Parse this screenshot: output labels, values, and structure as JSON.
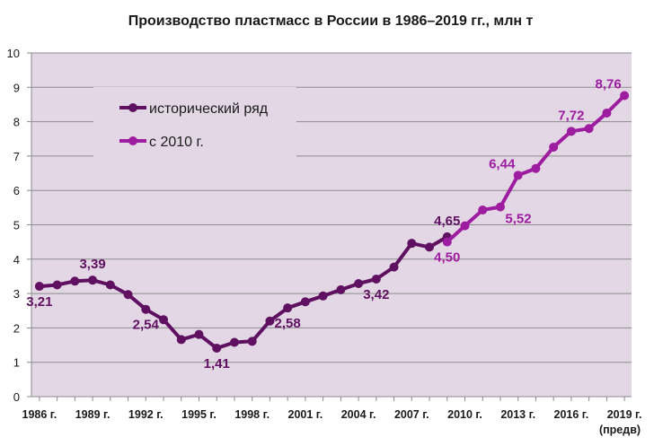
{
  "chart_data": {
    "type": "line",
    "title": "Производство пластмасс в России в 1986–2019 гг., млн т",
    "ylim": [
      0,
      10
    ],
    "yticks": [
      "0",
      "1",
      "2",
      "3",
      "4",
      "5",
      "6",
      "7",
      "8",
      "9",
      "10"
    ],
    "xticks": [
      {
        "year": 1986,
        "label": "1986 г."
      },
      {
        "year": 1989,
        "label": "1989 г."
      },
      {
        "year": 1992,
        "label": "1992 г."
      },
      {
        "year": 1995,
        "label": "1995 г."
      },
      {
        "year": 1998,
        "label": "1998 г."
      },
      {
        "year": 2001,
        "label": "2001 г."
      },
      {
        "year": 2004,
        "label": "2004 г."
      },
      {
        "year": 2007,
        "label": "2007 г."
      },
      {
        "year": 2010,
        "label": "2010 г."
      },
      {
        "year": 2013,
        "label": "2013 г."
      },
      {
        "year": 2016,
        "label": "2016 г."
      },
      {
        "year": 2019,
        "label": "2019 г."
      }
    ],
    "xtick_sub": "(предв)",
    "grid": true,
    "legend_position": "top-left",
    "series": [
      {
        "name": "исторический ряд",
        "color": "#5f1060",
        "points": [
          [
            1986,
            3.21
          ],
          [
            1987,
            3.25
          ],
          [
            1988,
            3.36
          ],
          [
            1989,
            3.39
          ],
          [
            1990,
            3.25
          ],
          [
            1991,
            2.97
          ],
          [
            1992,
            2.54
          ],
          [
            1993,
            2.24
          ],
          [
            1994,
            1.66
          ],
          [
            1995,
            1.81
          ],
          [
            1996,
            1.41
          ],
          [
            1997,
            1.58
          ],
          [
            1998,
            1.61
          ],
          [
            1999,
            2.2
          ],
          [
            2000,
            2.58
          ],
          [
            2001,
            2.76
          ],
          [
            2002,
            2.93
          ],
          [
            2003,
            3.11
          ],
          [
            2004,
            3.29
          ],
          [
            2005,
            3.42
          ],
          [
            2006,
            3.77
          ],
          [
            2007,
            4.46
          ],
          [
            2008,
            4.35
          ],
          [
            2009,
            4.65
          ]
        ]
      },
      {
        "name": "с 2010 г.",
        "color": "#9d1c9f",
        "points": [
          [
            2009,
            4.5
          ],
          [
            2010,
            4.97
          ],
          [
            2011,
            5.43
          ],
          [
            2012,
            5.52
          ],
          [
            2013,
            6.44
          ],
          [
            2014,
            6.64
          ],
          [
            2015,
            7.26
          ],
          [
            2016,
            7.72
          ],
          [
            2017,
            7.8
          ],
          [
            2018,
            8.25
          ],
          [
            2019,
            8.76
          ]
        ]
      }
    ],
    "data_labels": [
      {
        "series": 0,
        "year": 1986,
        "text": "3,21",
        "position": "below"
      },
      {
        "series": 0,
        "year": 1989,
        "text": "3,39",
        "position": "above"
      },
      {
        "series": 0,
        "year": 1992,
        "text": "2,54",
        "position": "below"
      },
      {
        "series": 0,
        "year": 1996,
        "text": "1,41",
        "position": "below"
      },
      {
        "series": 0,
        "year": 2000,
        "text": "2,58",
        "position": "below"
      },
      {
        "series": 0,
        "year": 2005,
        "text": "3,42",
        "position": "below"
      },
      {
        "series": 0,
        "year": 2009,
        "text": "4,65",
        "position": "above"
      },
      {
        "series": 1,
        "year": 2009,
        "text": "4,50",
        "position": "below"
      },
      {
        "series": 1,
        "year": 2012,
        "text": "5,52",
        "position": "below-right"
      },
      {
        "series": 1,
        "year": 2013,
        "text": "6,44",
        "position": "above-left"
      },
      {
        "series": 1,
        "year": 2016,
        "text": "7,72",
        "position": "above"
      },
      {
        "series": 1,
        "year": 2019,
        "text": "8,76",
        "position": "above-left"
      }
    ]
  }
}
